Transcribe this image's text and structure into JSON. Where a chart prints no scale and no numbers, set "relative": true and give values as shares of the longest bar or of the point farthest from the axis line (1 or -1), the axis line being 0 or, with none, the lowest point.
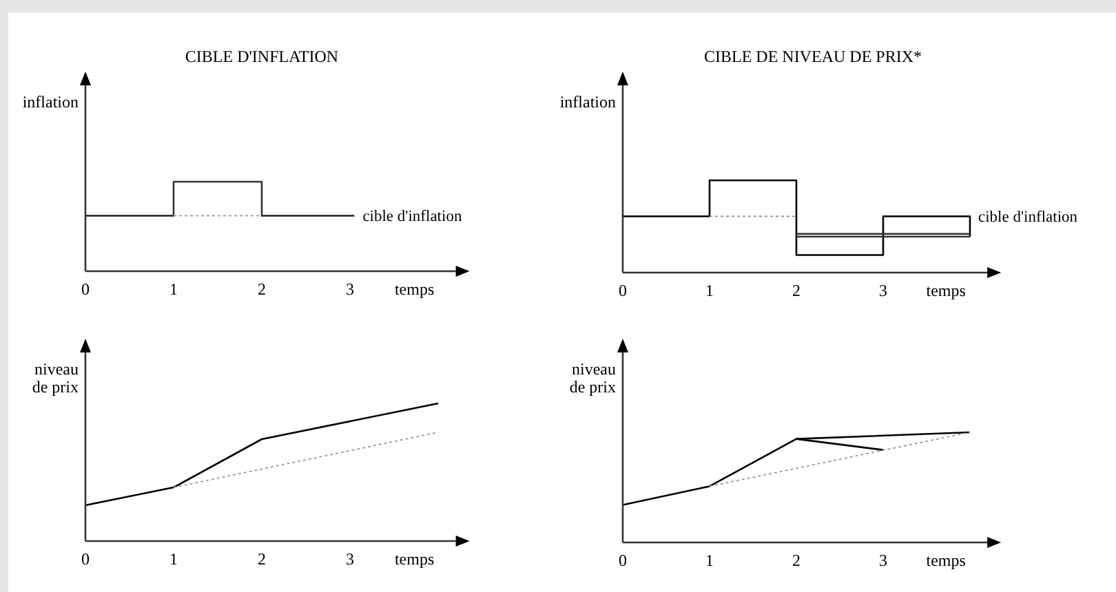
{
  "chart_data": [
    {
      "type": "line",
      "title": "CIBLE D'INFLATION",
      "ylabel": "inflation",
      "xlabel": "temps",
      "relative": true,
      "xlim": [
        0,
        4.2
      ],
      "xticks": [
        0,
        1,
        2,
        3
      ],
      "series": [
        {
          "color": "#333333",
          "line_style": "solid",
          "x": [
            0,
            1,
            1,
            2,
            2,
            3.05
          ],
          "values": [
            0.62,
            0.62,
            1,
            1,
            0.62,
            0.62
          ]
        },
        {
          "color": "#999999",
          "line_style": "dotted",
          "x": [
            1,
            2
          ],
          "values": [
            0.62,
            0.62
          ]
        }
      ],
      "annotations": [
        {
          "text": "cible d'inflation",
          "x": 3.05,
          "y": 0.62
        }
      ],
      "grid": false,
      "marker": "none"
    },
    {
      "type": "line",
      "title": "CIBLE DE NIVEAU DE PRIX*",
      "ylabel": "inflation",
      "xlabel": "temps",
      "relative": true,
      "xlim": [
        0,
        4.2
      ],
      "xticks": [
        0,
        1,
        2,
        3
      ],
      "series": [
        {
          "color": "#000000",
          "line_style": "solid",
          "x": [
            0,
            1,
            1,
            2,
            2,
            3,
            3,
            4,
            4
          ],
          "values": [
            0.61,
            0.61,
            1,
            1,
            0.19,
            0.19,
            0.61,
            0.61,
            0.39
          ]
        },
        {
          "color": "#333333",
          "line_style": "solid",
          "x": [
            2,
            4
          ],
          "values": [
            0.42,
            0.42
          ]
        },
        {
          "color": "#333333",
          "line_style": "solid",
          "x": [
            2,
            4
          ],
          "values": [
            0.39,
            0.39
          ]
        },
        {
          "color": "#999999",
          "line_style": "dotted",
          "x": [
            1,
            2
          ],
          "values": [
            0.61,
            0.61
          ]
        }
      ],
      "annotations": [
        {
          "text": "cible d'inflation",
          "x": 4,
          "y": 0.61
        }
      ],
      "grid": false,
      "marker": "none"
    },
    {
      "type": "line",
      "ylabel": "niveau de prix",
      "xlabel": "temps",
      "relative": true,
      "xlim": [
        0,
        4.2
      ],
      "xticks": [
        0,
        1,
        2,
        3
      ],
      "series": [
        {
          "color": "#000000",
          "line_style": "solid",
          "x": [
            0,
            1,
            2,
            4
          ],
          "values": [
            0.26,
            0.39,
            0.74,
            1
          ]
        },
        {
          "color": "#999999",
          "line_style": "dotted",
          "x": [
            1,
            4
          ],
          "values": [
            0.39,
            0.79
          ]
        }
      ],
      "grid": false,
      "marker": "none"
    },
    {
      "type": "line",
      "ylabel": "niveau de prix",
      "xlabel": "temps",
      "relative": true,
      "xlim": [
        0,
        4.2
      ],
      "xticks": [
        0,
        1,
        2,
        3
      ],
      "series": [
        {
          "color": "#000000",
          "line_style": "solid",
          "x": [
            0,
            1,
            2,
            4
          ],
          "values": [
            0.34,
            0.51,
            0.94,
            1
          ]
        },
        {
          "color": "#000000",
          "line_style": "solid",
          "x": [
            2,
            3
          ],
          "values": [
            0.94,
            0.84
          ]
        },
        {
          "color": "#999999",
          "line_style": "dotted",
          "x": [
            1,
            4
          ],
          "values": [
            0.51,
            1
          ]
        }
      ],
      "grid": false,
      "marker": "none"
    }
  ]
}
